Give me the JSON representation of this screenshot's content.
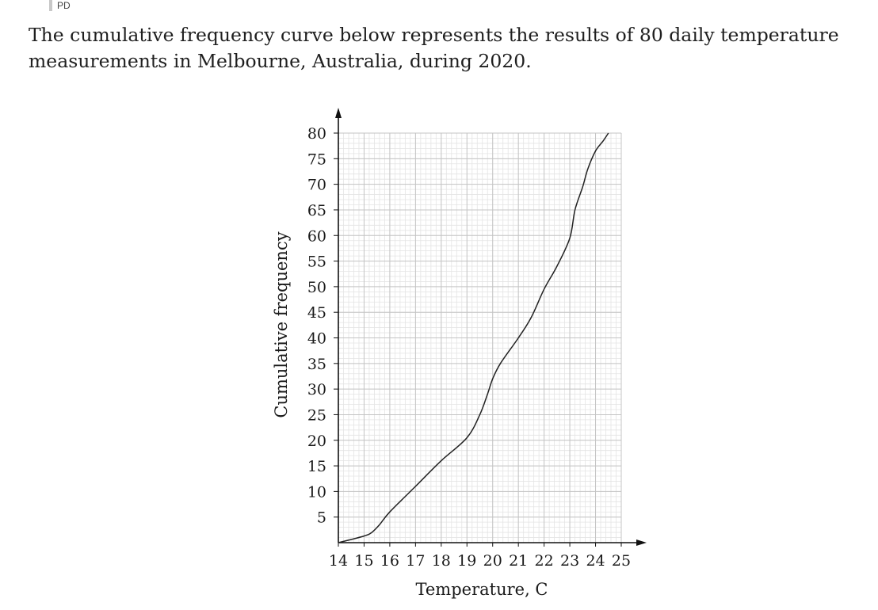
{
  "header": {
    "tag": "PD"
  },
  "question": {
    "text": "The cumulative frequency curve below represents the results of 80 daily temperature measurements in Melbourne, Australia, during 2020."
  },
  "chart_data": {
    "type": "line",
    "title": "",
    "xlabel": "Temperature, C",
    "ylabel": "Cumulative frequency",
    "xlim": [
      14,
      25
    ],
    "ylim": [
      0,
      80
    ],
    "x_ticks": [
      14,
      15,
      16,
      17,
      18,
      19,
      20,
      21,
      22,
      23,
      24,
      25
    ],
    "y_ticks": [
      5,
      10,
      15,
      20,
      25,
      30,
      35,
      40,
      45,
      50,
      55,
      60,
      65,
      70,
      75,
      80
    ],
    "grid": true,
    "series": [
      {
        "x": [
          14,
          15,
          15.3,
          15.6,
          16,
          17,
          18,
          19,
          19.5,
          19.8,
          20,
          20.3,
          21,
          21.5,
          22,
          22.5,
          23,
          23.2,
          23.5,
          23.7,
          24,
          24.3,
          24.5
        ],
        "y": [
          0,
          1.3,
          2,
          3.5,
          6,
          11,
          16,
          20.5,
          25,
          29,
          32,
          35,
          40,
          44,
          49.5,
          54,
          59.5,
          65,
          69.5,
          73,
          76.5,
          78.5,
          80
        ]
      }
    ]
  }
}
